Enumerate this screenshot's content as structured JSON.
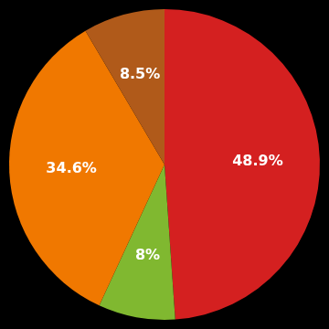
{
  "chart_data": {
    "type": "pie",
    "values": [
      48.9,
      8.0,
      34.6,
      8.5
    ],
    "value_labels": [
      "48.9%",
      "8%",
      "34.6%",
      "8.5%"
    ],
    "colors": [
      "#d42020",
      "#80b830",
      "#f07800",
      "#b05a1a"
    ],
    "data_labels": true
  }
}
